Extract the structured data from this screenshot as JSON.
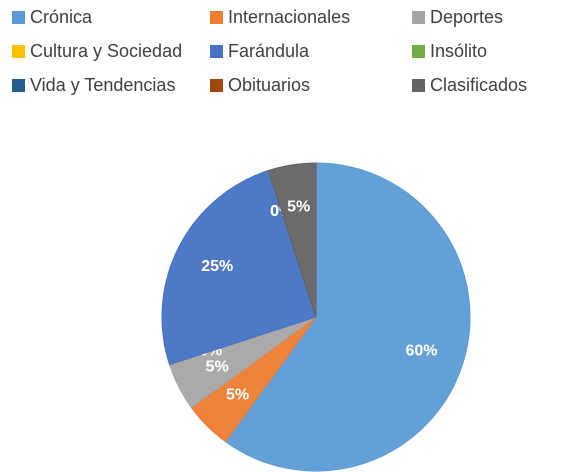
{
  "chart_data": {
    "type": "pie",
    "categories": [
      "Crónica",
      "Internacionales",
      "Deportes",
      "Cultura y Sociedad",
      "Farándula",
      "Insólito",
      "Vida y Tendencias",
      "Obituarios",
      "Clasificados"
    ],
    "values": [
      60,
      5,
      5,
      0,
      25,
      0,
      0,
      0,
      5
    ],
    "value_labels": [
      "60%",
      "5%",
      "5%",
      "0%",
      "25%",
      "0%",
      "0%",
      "0%",
      "5%"
    ],
    "colors": [
      "#5b9bd5",
      "#ed7d31",
      "#a5a5a5",
      "#ffc000",
      "#4472c4",
      "#70ad47",
      "#255e91",
      "#9e480e",
      "#636363"
    ],
    "legend": "top"
  }
}
